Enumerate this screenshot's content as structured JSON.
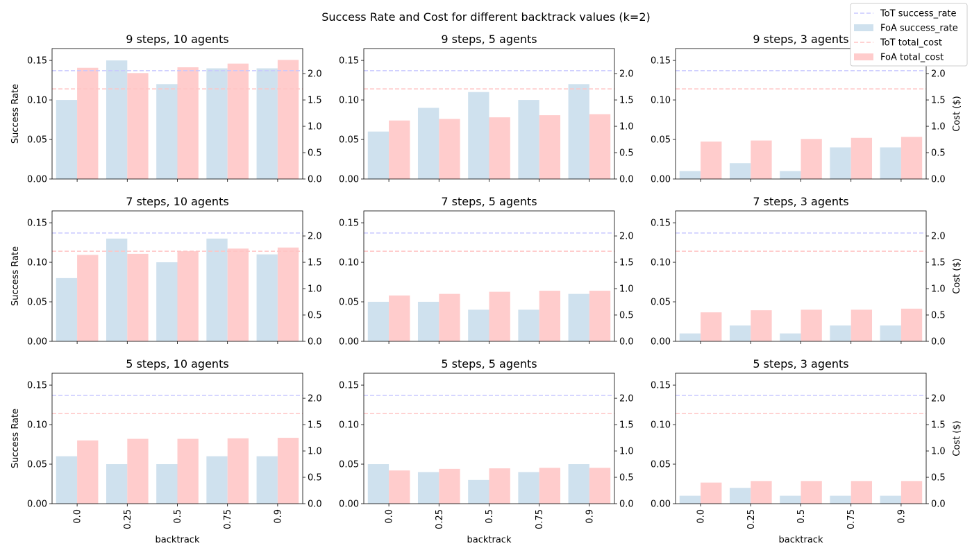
{
  "chart_data": {
    "type": "bar",
    "title": "Success Rate and Cost for different backtrack values (k=2)",
    "xlabel": "backtrack",
    "ylabel_left": "Success Rate",
    "ylabel_right": "Cost ($)",
    "categories": [
      "0.0",
      "0.25",
      "0.5",
      "0.75",
      "0.9"
    ],
    "ylim_left": [
      0,
      0.165
    ],
    "ylim_right": [
      0,
      2.475
    ],
    "yticks_left": [
      "0.00",
      "0.05",
      "0.10",
      "0.15"
    ],
    "yticks_right": [
      "0.0",
      "0.5",
      "1.0",
      "1.5",
      "2.0"
    ],
    "reference_lines": {
      "tot_success_rate": 0.137,
      "tot_total_cost": 1.71
    },
    "legend": {
      "placement": "top-right",
      "entries": [
        "ToT success_rate",
        "FoA success_rate",
        "ToT total_cost",
        "FoA total_cost"
      ]
    },
    "colors": {
      "foa_success_rate": "#cfe1ee",
      "foa_total_cost": "#ffcccc",
      "tot_success_rate": "#c8c8ff",
      "tot_total_cost": "#ffc4c4"
    },
    "panels": [
      {
        "title": "9 steps, 10 agents",
        "success_rate": [
          0.1,
          0.15,
          0.12,
          0.14,
          0.14
        ],
        "total_cost": [
          2.11,
          2.01,
          2.12,
          2.19,
          2.26
        ]
      },
      {
        "title": "9 steps, 5 agents",
        "success_rate": [
          0.06,
          0.09,
          0.11,
          0.1,
          0.12
        ],
        "total_cost": [
          1.11,
          1.14,
          1.17,
          1.21,
          1.23
        ]
      },
      {
        "title": "9 steps, 3 agents",
        "success_rate": [
          0.01,
          0.02,
          0.01,
          0.04,
          0.04
        ],
        "total_cost": [
          0.71,
          0.73,
          0.76,
          0.78,
          0.8
        ]
      },
      {
        "title": "7 steps, 10 agents",
        "success_rate": [
          0.08,
          0.13,
          0.1,
          0.13,
          0.11
        ],
        "total_cost": [
          1.64,
          1.66,
          1.71,
          1.76,
          1.78
        ]
      },
      {
        "title": "7 steps, 5 agents",
        "success_rate": [
          0.05,
          0.05,
          0.04,
          0.04,
          0.06
        ],
        "total_cost": [
          0.87,
          0.9,
          0.94,
          0.96,
          0.96
        ]
      },
      {
        "title": "7 steps, 3 agents",
        "success_rate": [
          0.01,
          0.02,
          0.01,
          0.02,
          0.02
        ],
        "total_cost": [
          0.55,
          0.59,
          0.6,
          0.6,
          0.62
        ]
      },
      {
        "title": "5 steps, 10 agents",
        "success_rate": [
          0.06,
          0.05,
          0.05,
          0.06,
          0.06
        ],
        "total_cost": [
          1.2,
          1.23,
          1.23,
          1.24,
          1.25
        ]
      },
      {
        "title": "5 steps, 5 agents",
        "success_rate": [
          0.05,
          0.04,
          0.03,
          0.04,
          0.05
        ],
        "total_cost": [
          0.63,
          0.66,
          0.67,
          0.68,
          0.68
        ]
      },
      {
        "title": "5 steps, 3 agents",
        "success_rate": [
          0.01,
          0.02,
          0.01,
          0.01,
          0.01
        ],
        "total_cost": [
          0.4,
          0.43,
          0.43,
          0.43,
          0.43
        ]
      }
    ]
  }
}
